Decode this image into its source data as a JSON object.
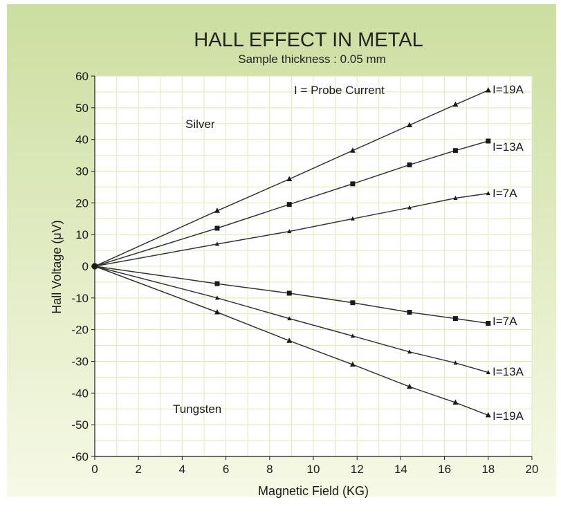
{
  "chart_data": {
    "type": "line",
    "title": "HALL EFFECT IN METAL",
    "subtitle": "Sample thickness : 0.05 mm",
    "xlabel": "Magnetic Field (KG)",
    "ylabel": "Hall Voltage (μV)",
    "xlim": [
      0,
      20
    ],
    "ylim": [
      -60,
      60
    ],
    "x_ticks": [
      0,
      2,
      4,
      6,
      8,
      10,
      12,
      14,
      16,
      18,
      20
    ],
    "y_ticks": [
      60,
      50,
      40,
      30,
      20,
      10,
      0,
      -10,
      -20,
      -30,
      -40,
      -50,
      -60
    ],
    "grid": true,
    "annotations": [
      "I = Probe Current",
      "Silver",
      "Tungsten"
    ],
    "series": [
      {
        "name": "I=19A",
        "group": "Silver",
        "marker": "triangle",
        "x": [
          0,
          5.6,
          8.9,
          11.8,
          14.4,
          16.5,
          18
        ],
        "y": [
          0,
          17.5,
          27.5,
          36.5,
          44.5,
          51,
          55.5
        ]
      },
      {
        "name": "I=13A",
        "group": "Silver",
        "marker": "square",
        "x": [
          0,
          5.6,
          8.9,
          11.8,
          14.4,
          16.5,
          18
        ],
        "y": [
          0,
          12,
          19.5,
          26,
          32,
          36.5,
          39.5
        ]
      },
      {
        "name": "I=7A",
        "group": "Silver",
        "marker": "small",
        "x": [
          0,
          5.6,
          8.9,
          11.8,
          14.4,
          16.5,
          18
        ],
        "y": [
          0,
          7,
          11,
          15,
          18.5,
          21.5,
          23
        ]
      },
      {
        "name": "I=7A",
        "group": "Tungsten",
        "marker": "square",
        "x": [
          0,
          5.6,
          8.9,
          11.8,
          14.4,
          16.5,
          18
        ],
        "y": [
          0,
          -5.5,
          -8.5,
          -11.5,
          -14.5,
          -16.5,
          -18
        ]
      },
      {
        "name": "I=13A",
        "group": "Tungsten",
        "marker": "small",
        "x": [
          0,
          5.6,
          8.9,
          11.8,
          14.4,
          16.5,
          18
        ],
        "y": [
          0,
          -10,
          -16.5,
          -22,
          -27,
          -30.5,
          -33.5
        ]
      },
      {
        "name": "I=19A",
        "group": "Tungsten",
        "marker": "triangle",
        "x": [
          0,
          5.6,
          8.9,
          11.8,
          14.4,
          16.5,
          18
        ],
        "y": [
          0,
          -14.5,
          -23.5,
          -31,
          -38,
          -43,
          -47
        ]
      }
    ]
  },
  "colors": {
    "background_top": "#ccdea0",
    "background_bottom": "#f6f9e6",
    "plot_background": "#ffffff",
    "grid": "#d8ecb6",
    "line": "#333333"
  }
}
